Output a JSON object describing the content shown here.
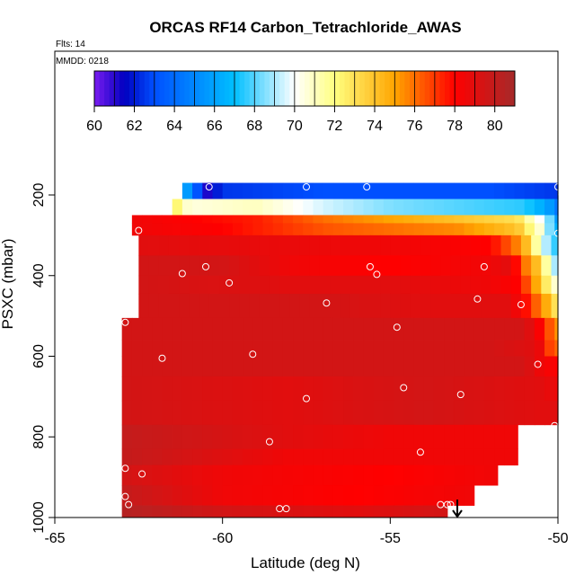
{
  "chart_data": {
    "type": "heatmap",
    "title": "ORCAS RF14 Carbon_Tetrachloride_AWAS",
    "annotations": {
      "flights": "Flts: 14",
      "date": "MMDD: 0218"
    },
    "xlabel": "Latitude (deg N)",
    "ylabel": "PSXC (mbar)",
    "xlim": [
      -65,
      -50
    ],
    "ylim": [
      1000,
      100
    ],
    "x_ticks": [
      "-65",
      "-60",
      "-55",
      "-50"
    ],
    "x_tick_values": [
      -65,
      -60,
      -55,
      -50
    ],
    "y_ticks": [
      "200",
      "400",
      "600",
      "800",
      "1000"
    ],
    "y_tick_values": [
      200,
      400,
      600,
      800,
      1000
    ],
    "colorbar": {
      "range": [
        60,
        81
      ],
      "ticks": [
        "60",
        "62",
        "64",
        "66",
        "68",
        "70",
        "72",
        "74",
        "76",
        "78",
        "80"
      ],
      "tick_values": [
        60,
        62,
        64,
        66,
        68,
        70,
        72,
        74,
        76,
        78,
        80
      ],
      "placement": "top",
      "colors": [
        "#7a1cf0",
        "#0000c0",
        "#0050ff",
        "#00bfff",
        "#ffffff",
        "#ffff80",
        "#ffa500",
        "#ff0000",
        "#a52a2a"
      ]
    },
    "grid": false,
    "bands": [
      {
        "p_min": 170,
        "p_max": 210,
        "lat_min": -61.2,
        "lat_max": -50,
        "value": 62.5,
        "gradient": [
          [
            -61.2,
            67
          ],
          [
            -60.5,
            61
          ],
          [
            -60,
            62.5
          ],
          [
            -57,
            63
          ],
          [
            -55,
            63
          ],
          [
            -52,
            63
          ],
          [
            -50,
            62.5
          ]
        ]
      },
      {
        "p_min": 210,
        "p_max": 250,
        "lat_min": -61.5,
        "lat_max": -50,
        "value": 69,
        "gradient": [
          [
            -61.5,
            73
          ],
          [
            -61,
            70.5
          ],
          [
            -59,
            71
          ],
          [
            -57,
            69.5
          ],
          [
            -55,
            68.5
          ],
          [
            -53,
            68
          ],
          [
            -51,
            67.5
          ],
          [
            -50.3,
            66
          ],
          [
            -50,
            64
          ]
        ]
      },
      {
        "p_min": 250,
        "p_max": 270,
        "lat_min": -62.7,
        "lat_max": -50,
        "value": 78.5,
        "gradient": [
          [
            -62.7,
            78.5
          ],
          [
            -59,
            77.5
          ],
          [
            -57,
            76
          ],
          [
            -55,
            75
          ],
          [
            -53,
            74
          ],
          [
            -51.2,
            73
          ],
          [
            -50.8,
            71
          ],
          [
            -50.3,
            69
          ],
          [
            -50,
            65
          ]
        ]
      },
      {
        "p_min": 270,
        "p_max": 300,
        "lat_min": -62.7,
        "lat_max": -50,
        "value": 78.5,
        "gradient": [
          [
            -62.7,
            78.5
          ],
          [
            -60,
            78
          ],
          [
            -57,
            76.5
          ],
          [
            -55,
            76
          ],
          [
            -53,
            75.5
          ],
          [
            -51.2,
            74
          ],
          [
            -50.8,
            72
          ],
          [
            -50.4,
            70
          ],
          [
            -50,
            66
          ]
        ]
      },
      {
        "p_min": 300,
        "p_max": 350,
        "lat_min": -62.5,
        "lat_max": -50,
        "value": 79,
        "gradient": [
          [
            -62.5,
            79
          ],
          [
            -55,
            78.5
          ],
          [
            -52,
            78
          ],
          [
            -51.3,
            76
          ],
          [
            -50.9,
            74
          ],
          [
            -50.5,
            70
          ],
          [
            -50,
            67
          ]
        ]
      },
      {
        "p_min": 350,
        "p_max": 400,
        "lat_min": -62.5,
        "lat_max": -50,
        "value": 79,
        "gradient": [
          [
            -62.5,
            79.5
          ],
          [
            -60,
            79.5
          ],
          [
            -58,
            78.5
          ],
          [
            -55,
            78
          ],
          [
            -52,
            78.5
          ],
          [
            -51.4,
            79
          ],
          [
            -51,
            76
          ],
          [
            -50.6,
            74
          ],
          [
            -50.2,
            70
          ],
          [
            -50,
            68
          ]
        ]
      },
      {
        "p_min": 400,
        "p_max": 445,
        "lat_min": -62.5,
        "lat_max": -50,
        "value": 79,
        "gradient": [
          [
            -62.5,
            79.5
          ],
          [
            -58,
            79
          ],
          [
            -55,
            79
          ],
          [
            -52,
            78.5
          ],
          [
            -51.2,
            78
          ],
          [
            -50.8,
            76
          ],
          [
            -50.4,
            73
          ],
          [
            -50,
            70
          ]
        ]
      },
      {
        "p_min": 445,
        "p_max": 505,
        "lat_min": -62.5,
        "lat_max": -50,
        "value": 79,
        "gradient": [
          [
            -62.5,
            79.5
          ],
          [
            -57,
            79.5
          ],
          [
            -54,
            79
          ],
          [
            -51.5,
            79
          ],
          [
            -51,
            78
          ],
          [
            -50.6,
            76
          ],
          [
            -50.2,
            74
          ],
          [
            -50,
            72
          ]
        ]
      },
      {
        "p_min": 505,
        "p_max": 560,
        "lat_min": -63,
        "lat_max": -50,
        "value": 79.5,
        "gradient": [
          [
            -63,
            79.5
          ],
          [
            -55,
            79.5
          ],
          [
            -51,
            79.5
          ],
          [
            -50.5,
            78
          ],
          [
            -50,
            75
          ]
        ]
      },
      {
        "p_min": 560,
        "p_max": 600,
        "lat_min": -63,
        "lat_max": -50,
        "value": 79.5,
        "gradient": [
          [
            -63,
            79.5
          ],
          [
            -52,
            79.5
          ],
          [
            -50.6,
            79
          ],
          [
            -50.3,
            77
          ],
          [
            -50,
            76
          ]
        ]
      },
      {
        "p_min": 600,
        "p_max": 650,
        "lat_min": -63,
        "lat_max": -50,
        "value": 79.5,
        "gradient": [
          [
            -63,
            79.5
          ],
          [
            -51,
            79.5
          ],
          [
            -50.5,
            78.5
          ],
          [
            -50,
            78
          ]
        ]
      },
      {
        "p_min": 650,
        "p_max": 710,
        "lat_min": -63,
        "lat_max": -50,
        "value": 79.5,
        "gradient": [
          [
            -63,
            79.5
          ],
          [
            -58,
            79
          ],
          [
            -54,
            79.5
          ],
          [
            -50.5,
            79
          ],
          [
            -50,
            78.5
          ]
        ]
      },
      {
        "p_min": 710,
        "p_max": 770,
        "lat_min": -63,
        "lat_max": -50,
        "value": 79,
        "gradient": [
          [
            -63,
            79.5
          ],
          [
            -58,
            79
          ],
          [
            -54,
            79.5
          ],
          [
            -50.5,
            79
          ],
          [
            -50,
            79
          ]
        ]
      },
      {
        "p_min": 770,
        "p_max": 830,
        "lat_min": -63,
        "lat_max": -51.2,
        "value": 79,
        "gradient": [
          [
            -63,
            80
          ],
          [
            -58,
            79
          ],
          [
            -55,
            78.5
          ],
          [
            -51.2,
            78.5
          ]
        ]
      },
      {
        "p_min": 830,
        "p_max": 870,
        "lat_min": -63,
        "lat_max": -51.2,
        "value": 79,
        "gradient": [
          [
            -63,
            80
          ],
          [
            -58,
            78.5
          ],
          [
            -55,
            78.5
          ],
          [
            -51.2,
            78.5
          ]
        ]
      },
      {
        "p_min": 870,
        "p_max": 920,
        "lat_min": -63,
        "lat_max": -51.8,
        "value": 78.5,
        "gradient": [
          [
            -63,
            79.5
          ],
          [
            -60,
            78.5
          ],
          [
            -55,
            78
          ],
          [
            -51.8,
            78.5
          ]
        ]
      },
      {
        "p_min": 920,
        "p_max": 970,
        "lat_min": -63,
        "lat_max": -52.5,
        "value": 78.5,
        "gradient": [
          [
            -63,
            80
          ],
          [
            -60,
            78.5
          ],
          [
            -56,
            78
          ],
          [
            -52.5,
            78.5
          ]
        ]
      },
      {
        "p_min": 970,
        "p_max": 1000,
        "lat_min": -63,
        "lat_max": -53.3,
        "value": 79.5,
        "gradient": [
          [
            -63,
            80.5
          ],
          [
            -60,
            79.5
          ],
          [
            -56,
            79
          ],
          [
            -53.3,
            79.5
          ]
        ]
      }
    ],
    "sample_points": [
      {
        "lat": -61.9,
        "p": 180
      },
      {
        "lat": -61.75,
        "p": 180
      },
      {
        "lat": -60.4,
        "p": 180
      },
      {
        "lat": -57.5,
        "p": 180
      },
      {
        "lat": -55.7,
        "p": 180
      },
      {
        "lat": -50,
        "p": 180
      },
      {
        "lat": -49.9,
        "p": 195
      },
      {
        "lat": -62.5,
        "p": 288
      },
      {
        "lat": -50,
        "p": 295
      },
      {
        "lat": -60.5,
        "p": 378
      },
      {
        "lat": -55.6,
        "p": 378
      },
      {
        "lat": -52.2,
        "p": 378
      },
      {
        "lat": -61.2,
        "p": 395
      },
      {
        "lat": -55.4,
        "p": 397
      },
      {
        "lat": -59.8,
        "p": 418
      },
      {
        "lat": -52.4,
        "p": 458
      },
      {
        "lat": -56.9,
        "p": 468
      },
      {
        "lat": -51.1,
        "p": 472
      },
      {
        "lat": -62.9,
        "p": 516
      },
      {
        "lat": -54.8,
        "p": 528
      },
      {
        "lat": -59.1,
        "p": 595
      },
      {
        "lat": -61.8,
        "p": 605
      },
      {
        "lat": -50.6,
        "p": 620
      },
      {
        "lat": -54.6,
        "p": 678
      },
      {
        "lat": -52.9,
        "p": 695
      },
      {
        "lat": -57.5,
        "p": 705
      },
      {
        "lat": -50.1,
        "p": 772
      },
      {
        "lat": -58.6,
        "p": 812
      },
      {
        "lat": -54.1,
        "p": 838
      },
      {
        "lat": -62.9,
        "p": 878
      },
      {
        "lat": -62.4,
        "p": 892
      },
      {
        "lat": -62.9,
        "p": 948
      },
      {
        "lat": -62.8,
        "p": 968
      },
      {
        "lat": -53.5,
        "p": 968
      },
      {
        "lat": -53.3,
        "p": 968
      },
      {
        "lat": -53.2,
        "p": 968
      },
      {
        "lat": -58.3,
        "p": 978
      },
      {
        "lat": -58.1,
        "p": 978
      }
    ],
    "marker": {
      "type": "down-arrow",
      "lat": -53
    }
  }
}
